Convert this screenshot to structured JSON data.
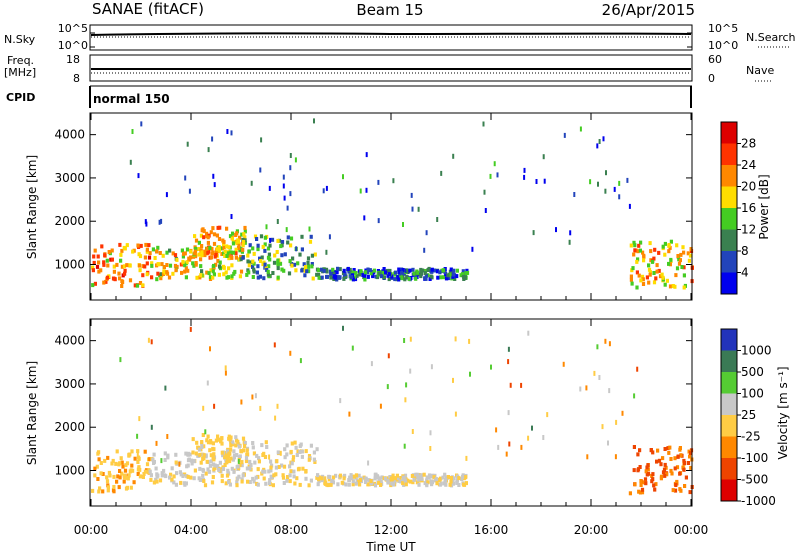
{
  "header": {
    "station": "SANAE (fitACF)",
    "beam": "Beam 15",
    "date": "26/Apr/2015"
  },
  "noise_panel": {
    "left_label": "N.Sky",
    "right_label": "N.Search",
    "left_ticks": [
      "10^5",
      "10^0"
    ],
    "right_ticks": [
      "10^5",
      "10^0"
    ]
  },
  "freq_panel": {
    "left_label_1": "Freq.",
    "left_label_2": "[MHz]",
    "right_label": "Nave",
    "left_ticks": [
      "18",
      "8"
    ],
    "right_ticks": [
      "60",
      "0"
    ]
  },
  "cpid_panel": {
    "label": "CPID",
    "mode": "normal 150"
  },
  "power_panel": {
    "ylabel": "Slant Range [km]",
    "yticks": [
      "4000",
      "3000",
      "2000",
      "1000"
    ],
    "colorbar_label": "Power [dB]",
    "colorbar_ticks": [
      "28",
      "24",
      "20",
      "16",
      "12",
      "8",
      "4"
    ],
    "colors": [
      "#0000ee",
      "#2244bb",
      "#3a8050",
      "#44cc22",
      "#ffdd00",
      "#ff8800",
      "#ff3300",
      "#dd0000"
    ]
  },
  "velocity_panel": {
    "ylabel": "Slant Range [km]",
    "yticks": [
      "4000",
      "3000",
      "2000",
      "1000"
    ],
    "colorbar_label": "Velocity [m s⁻¹]",
    "colorbar_ticks": [
      "1000",
      "500",
      "100",
      "25",
      "-25",
      "-100",
      "-500",
      "-1000"
    ],
    "colors": [
      "#2233bb",
      "#3a7a55",
      "#55cc33",
      "#c8c8c8",
      "#ffcc44",
      "#ff8800",
      "#ee4400",
      "#dd0000"
    ]
  },
  "xaxis": {
    "label": "Time UT",
    "ticks": [
      "00:00",
      "04:00",
      "08:00",
      "12:00",
      "16:00",
      "20:00",
      "00:00"
    ]
  },
  "chart_data": {
    "type": "heatmap",
    "title": "SANAE (fitACF)",
    "x_range_hours": [
      0,
      24
    ],
    "y_range_km": [
      180,
      4500
    ],
    "xlabel": "Time UT",
    "ylabel": "Slant Range [km]",
    "power_scale_db": [
      0,
      32
    ],
    "velocity_scale_ms": [
      -1000,
      1000
    ],
    "echo_regions": [
      {
        "t_start": 0.0,
        "t_end": 2.3,
        "range_low": 550,
        "range_high": 1500,
        "power_db": 22,
        "velocity": -200
      },
      {
        "t_start": 2.3,
        "t_end": 6.0,
        "range_low": 700,
        "range_high": 1450,
        "power_db": 18,
        "velocity": 60
      },
      {
        "t_start": 4.0,
        "t_end": 6.2,
        "range_low": 1200,
        "range_high": 1900,
        "power_db": 20,
        "velocity": -100
      },
      {
        "t_start": 5.8,
        "t_end": 9.0,
        "range_low": 700,
        "range_high": 1700,
        "power_db": 12,
        "velocity": 15
      },
      {
        "t_start": 9.0,
        "t_end": 15.0,
        "range_low": 700,
        "range_high": 950,
        "power_db": 8,
        "velocity": 10
      },
      {
        "t_start": 21.5,
        "t_end": 24.0,
        "range_low": 500,
        "range_high": 1600,
        "power_db": 20,
        "velocity": -500
      }
    ]
  }
}
